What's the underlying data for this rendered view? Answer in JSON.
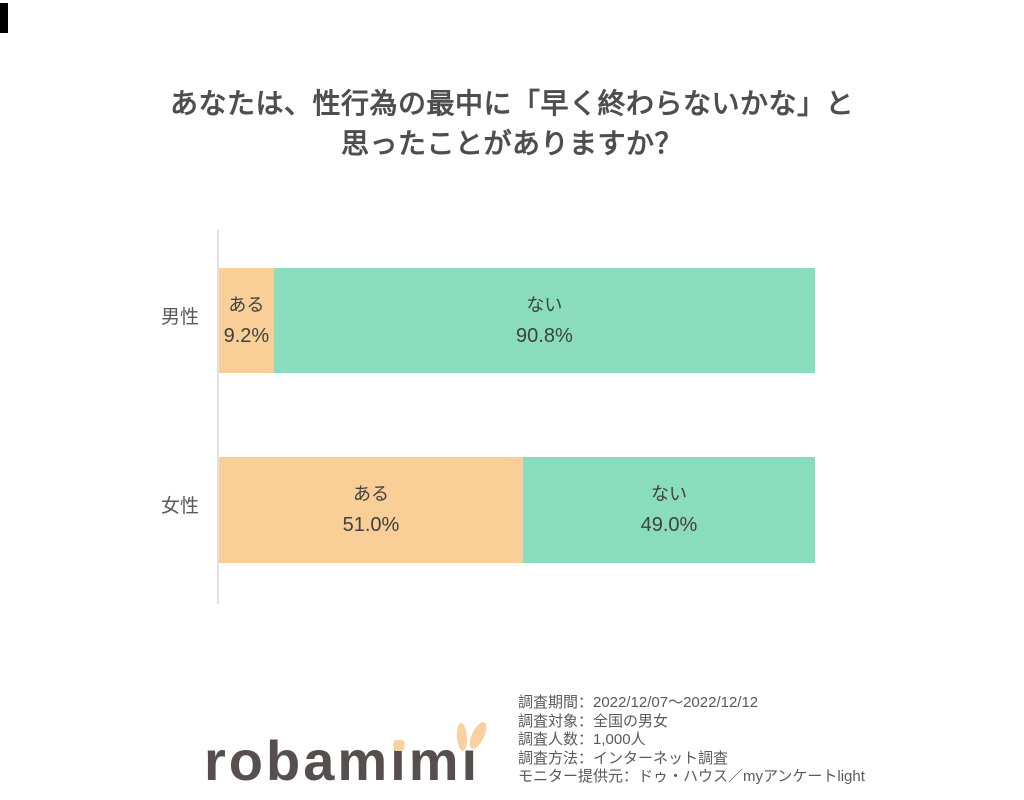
{
  "page": {
    "accent_mark_color": "#000000",
    "background_color": "#FFFFFF"
  },
  "header": {
    "title_line1": "あなたは、性行為の最中に「早く終わらないかな」と",
    "title_line2": "思ったことがありますか？",
    "title_color": "#4E4E4E"
  },
  "chart_data": {
    "type": "bar",
    "orientation": "horizontal",
    "stacked": true,
    "title": "あなたは、性行為の最中に「早く終わらないかな」と思ったことがありますか？",
    "categories": [
      "男性",
      "女性"
    ],
    "series": [
      {
        "name": "ある",
        "values": [
          9.2,
          51.0
        ],
        "labels": [
          "9.2%",
          "51.0%"
        ],
        "color": "#F9CF97"
      },
      {
        "name": "ない",
        "values": [
          90.8,
          49.0
        ],
        "labels": [
          "90.8%",
          "49.0%"
        ],
        "color": "#8ADDBC"
      }
    ],
    "value_unit": "%",
    "xlim": [
      0,
      100
    ],
    "legend": "none",
    "grid": false,
    "axis_line_color": "#E2E2E2",
    "category_label_color": "#595959",
    "bar_text_color": "#404040"
  },
  "footer": {
    "logo": {
      "text": "robamimi",
      "part_prefix": "robam",
      "part_i": "ı",
      "part_m": "m",
      "part_last_i": "ı",
      "text_color": "#574E50",
      "accent_color": "#F9D09E"
    },
    "survey_info": [
      "調査期間：2022/12/07～2022/12/12",
      "調査対象：全国の男女",
      "調査人数：1,000人",
      "調査方法：インターネット調査",
      "モニター提供元：ドゥ・ハウス／myアンケートlight"
    ],
    "info_color": "#595959"
  }
}
